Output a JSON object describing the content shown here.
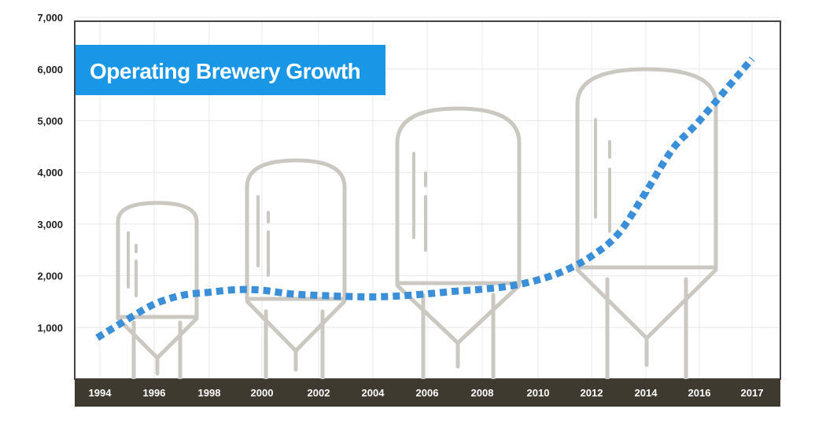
{
  "chart_data": {
    "type": "line",
    "title": "Operating Brewery Growth",
    "xlabel": "",
    "ylabel": "",
    "x_tick_labels": [
      "1994",
      "1996",
      "1998",
      "2000",
      "2002",
      "2004",
      "2006",
      "2008",
      "2010",
      "2012",
      "2014",
      "2016",
      "2017"
    ],
    "y_tick_labels": [
      "1,000",
      "2,000",
      "3,000",
      "4,000",
      "5,000",
      "6,000",
      "7,000"
    ],
    "ylim": [
      0,
      7000
    ],
    "grid": true,
    "series": [
      {
        "x": [
          1993.9,
          1995,
          1996,
          1997,
          1998,
          1999,
          2000,
          2001,
          2002,
          2003,
          2004,
          2005,
          2006,
          2007,
          2008,
          2009,
          2010,
          2011,
          2012,
          2013,
          2014,
          2015,
          2016,
          2017
        ],
        "values": [
          800,
          1150,
          1450,
          1620,
          1680,
          1730,
          1720,
          1650,
          1620,
          1600,
          1590,
          1610,
          1650,
          1700,
          1740,
          1800,
          1920,
          2100,
          2380,
          2820,
          3620,
          4450,
          5000,
          6200
        ]
      }
    ],
    "colors": {
      "line": "#3a8fd8",
      "title_bg": "#1a96e6",
      "axis_band": "#3f3a30",
      "grid": "#e8e8e8",
      "tanks": "#cbc8c1"
    }
  }
}
